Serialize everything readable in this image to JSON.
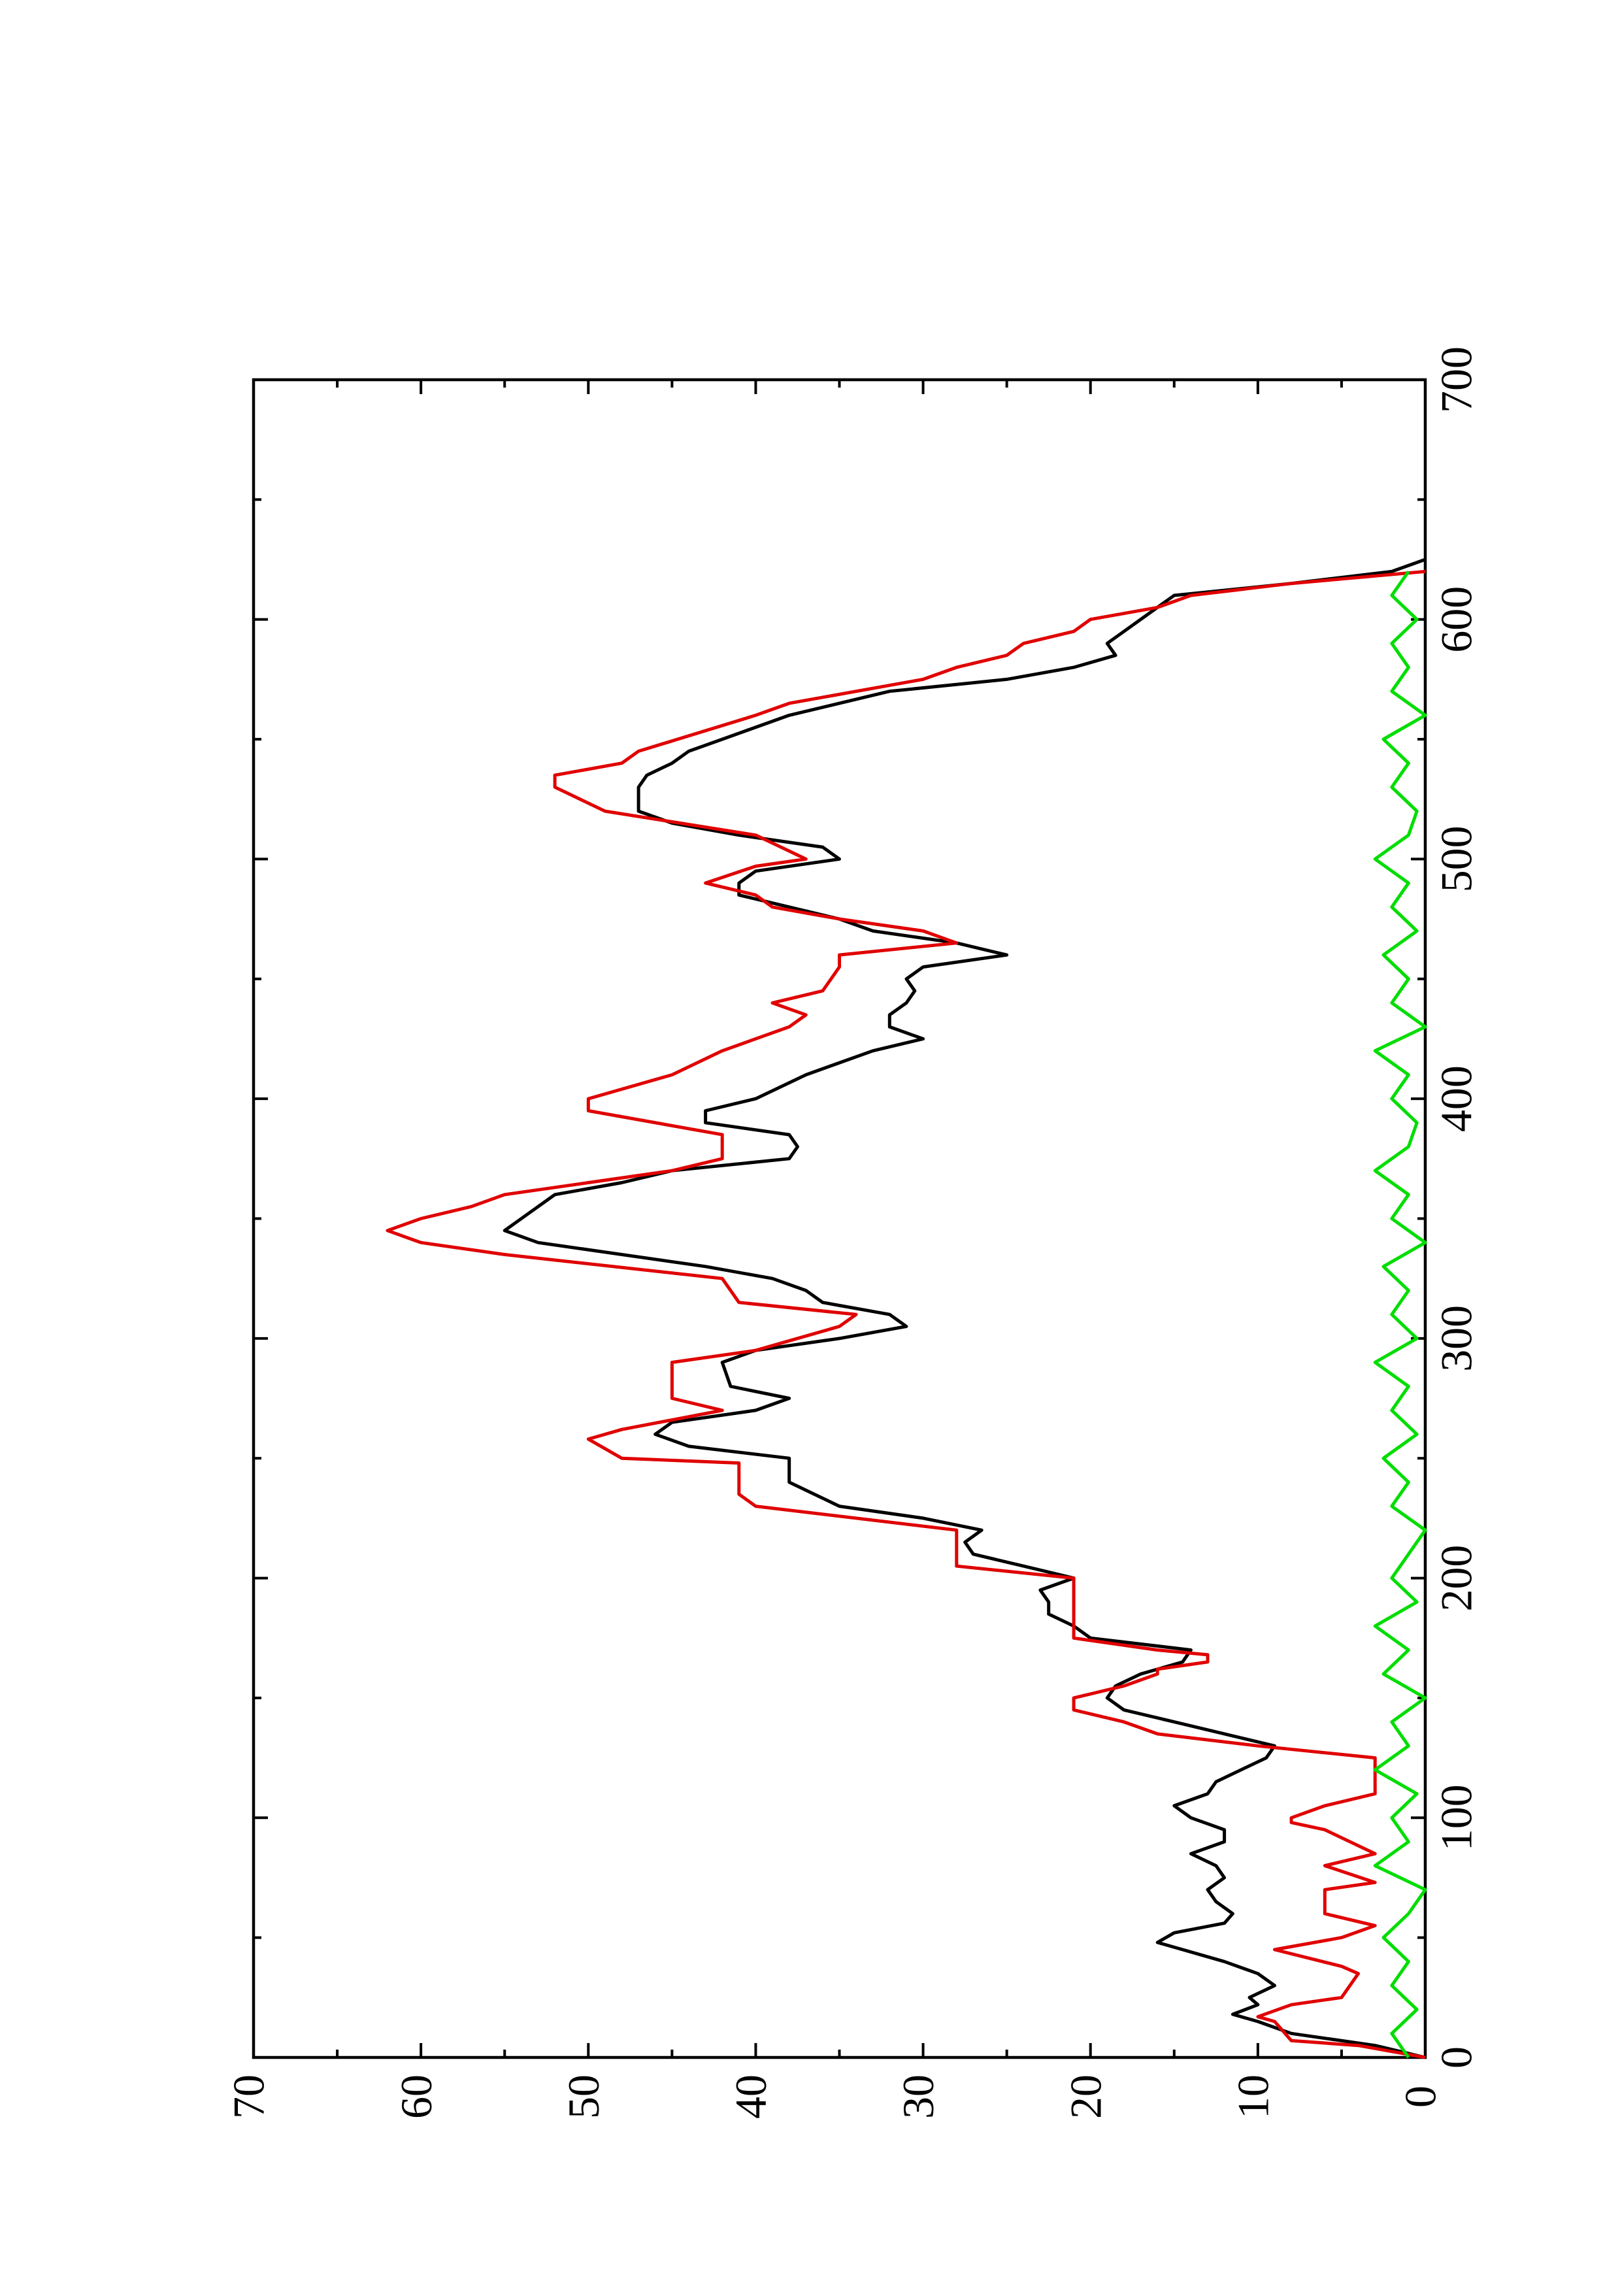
{
  "chart_data": {
    "type": "line",
    "xlim": [
      0,
      700
    ],
    "xticks": [
      0,
      100,
      200,
      300,
      400,
      500,
      600,
      700
    ],
    "xminorticks": [
      50,
      150,
      250,
      350,
      450,
      550,
      650
    ],
    "ylim": [
      0,
      70
    ],
    "yticks": [
      0,
      10,
      20,
      30,
      40,
      50,
      60,
      70
    ],
    "yminorticks": [
      5,
      15,
      25,
      35,
      45,
      55,
      65
    ],
    "series": [
      {
        "color": "#000000",
        "x": [
          0,
          5,
          10,
          15,
          18,
          22,
          25,
          30,
          35,
          40,
          48,
          52,
          56,
          60,
          65,
          70,
          75,
          80,
          85,
          90,
          95,
          100,
          105,
          110,
          115,
          120,
          125,
          130,
          135,
          140,
          145,
          150,
          155,
          160,
          165,
          170,
          175,
          180,
          185,
          190,
          195,
          200,
          205,
          210,
          215,
          220,
          225,
          230,
          240,
          250,
          255,
          260,
          265,
          270,
          275,
          280,
          290,
          295,
          300,
          305,
          310,
          315,
          320,
          325,
          330,
          340,
          345,
          350,
          360,
          365,
          370,
          375,
          380,
          385,
          390,
          395,
          400,
          410,
          415,
          420,
          425,
          430,
          435,
          440,
          445,
          450,
          455,
          460,
          465,
          470,
          475,
          480,
          485,
          490,
          495,
          500,
          505,
          510,
          515,
          520,
          525,
          530,
          535,
          540,
          545,
          550,
          560,
          565,
          570,
          575,
          580,
          585,
          590,
          595,
          600,
          610,
          615,
          620,
          625
        ],
        "values": [
          0,
          3,
          8,
          10,
          11.5,
          10,
          10.5,
          9,
          10,
          12,
          16,
          15,
          12,
          11.5,
          12.5,
          13,
          12,
          12.5,
          14,
          12,
          12,
          14,
          15,
          13,
          12.5,
          11,
          9.5,
          9,
          12,
          15,
          18,
          19,
          18.5,
          17,
          14.5,
          14,
          20,
          21,
          22.5,
          22.5,
          23,
          21,
          24,
          27,
          27.5,
          26.5,
          30,
          35,
          38,
          38,
          44,
          46,
          45,
          40,
          38,
          41.5,
          42,
          40,
          35,
          31,
          32,
          36,
          37,
          39,
          43,
          53,
          55,
          54,
          52,
          48,
          45,
          38,
          37.5,
          38,
          43,
          43,
          40,
          37,
          35,
          33,
          30,
          32,
          32,
          31,
          30.5,
          31,
          30,
          25,
          28,
          33,
          35,
          38,
          41,
          41,
          40,
          35,
          36,
          41,
          45,
          47,
          47,
          47,
          46.5,
          45,
          44,
          42,
          38,
          35,
          32,
          25,
          21,
          18.5,
          19,
          18,
          17,
          15,
          8,
          2,
          0
        ]
      },
      {
        "color": "#e00000",
        "x": [
          0,
          5,
          7,
          15,
          17,
          22,
          25,
          35,
          38,
          45,
          50,
          55,
          60,
          70,
          73,
          80,
          85,
          95,
          98,
          100,
          105,
          110,
          125,
          130,
          135,
          140,
          145,
          150,
          155,
          160,
          162,
          165,
          168,
          170,
          175,
          200,
          205,
          220,
          230,
          235,
          248,
          250,
          258,
          262,
          270,
          275,
          290,
          295,
          305,
          310,
          315,
          325,
          335,
          340,
          345,
          350,
          355,
          360,
          365,
          370,
          375,
          385,
          395,
          400,
          410,
          420,
          430,
          435,
          440,
          445,
          455,
          460,
          465,
          470,
          475,
          480,
          485,
          490,
          497,
          500,
          510,
          520,
          530,
          535,
          540,
          545,
          560,
          565,
          575,
          580,
          585,
          590,
          595,
          600,
          605,
          610,
          615,
          620
        ],
        "values": [
          0,
          4,
          8,
          9,
          10,
          8,
          5,
          4,
          5,
          9,
          5,
          3,
          6,
          6,
          3,
          6,
          3,
          6,
          8,
          8,
          6,
          3,
          3,
          10,
          16,
          18,
          21,
          21,
          18,
          16,
          16,
          13,
          13,
          16,
          21,
          21,
          28,
          28,
          40,
          41,
          41,
          48,
          50,
          48,
          42,
          45,
          45,
          40,
          35,
          34,
          41,
          42,
          55,
          60,
          62,
          60,
          57,
          55,
          50,
          45,
          42,
          42,
          50,
          50,
          45,
          42,
          38,
          37,
          39,
          36,
          35,
          35,
          28,
          30,
          35,
          39,
          40,
          43,
          40,
          37,
          40,
          49,
          52,
          52,
          48,
          47,
          40,
          38,
          30,
          28,
          25,
          24,
          21,
          20,
          16,
          14,
          8,
          0
        ]
      },
      {
        "color": "#00dd00",
        "x": [
          0,
          10,
          20,
          30,
          40,
          50,
          60,
          70,
          80,
          90,
          100,
          110,
          120,
          130,
          140,
          150,
          160,
          170,
          180,
          190,
          200,
          210,
          220,
          230,
          240,
          250,
          260,
          270,
          280,
          290,
          300,
          310,
          320,
          330,
          340,
          350,
          360,
          370,
          380,
          390,
          400,
          410,
          420,
          430,
          440,
          450,
          460,
          470,
          480,
          490,
          500,
          510,
          520,
          530,
          540,
          550,
          560,
          570,
          580,
          590,
          600,
          610,
          620
        ],
        "values": [
          1,
          2,
          0.5,
          2,
          1,
          2.5,
          1,
          0,
          3,
          1,
          2,
          0.5,
          3,
          1,
          2,
          0,
          2.5,
          1,
          3,
          0.5,
          2,
          1,
          0,
          2,
          1,
          2.5,
          0.5,
          2,
          1,
          3,
          0.5,
          2,
          1,
          2.5,
          0,
          2,
          1,
          3,
          1,
          0.5,
          2,
          1,
          3,
          0,
          2,
          1,
          2.5,
          0.5,
          2,
          1,
          3,
          1,
          0.5,
          2,
          1,
          2.5,
          0,
          2,
          1,
          2,
          0.5,
          2,
          1
        ]
      }
    ]
  }
}
